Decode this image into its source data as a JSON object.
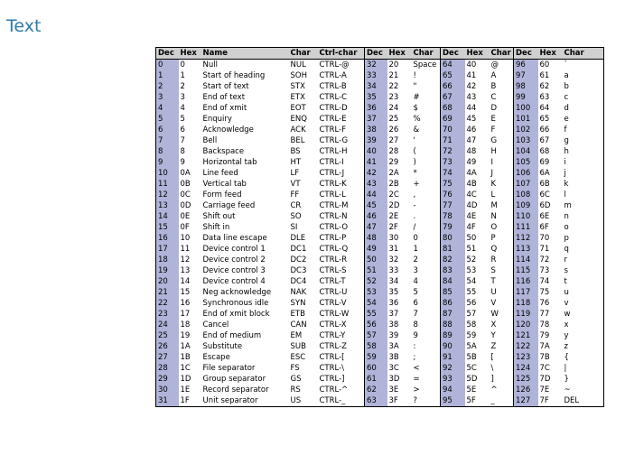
{
  "title": "Text",
  "table": {
    "headers": [
      "Dec",
      "Hex",
      "Name",
      "Char",
      "Ctrl-char",
      "Dec",
      "Hex",
      "Char",
      "Dec",
      "Hex",
      "Char",
      "Dec",
      "Hex",
      "Char"
    ],
    "rows": [
      [
        "0",
        "0",
        "Null",
        "NUL",
        "CTRL-@",
        "32",
        "20",
        "Space",
        "64",
        "40",
        "@",
        "96",
        "60",
        "`"
      ],
      [
        "1",
        "1",
        "Start of heading",
        "SOH",
        "CTRL-A",
        "33",
        "21",
        "!",
        "65",
        "41",
        "A",
        "97",
        "61",
        "a"
      ],
      [
        "2",
        "2",
        "Start of text",
        "STX",
        "CTRL-B",
        "34",
        "22",
        "\"",
        "66",
        "42",
        "B",
        "98",
        "62",
        "b"
      ],
      [
        "3",
        "3",
        "End of text",
        "ETX",
        "CTRL-C",
        "35",
        "23",
        "#",
        "67",
        "43",
        "C",
        "99",
        "63",
        "c"
      ],
      [
        "4",
        "4",
        "End of xmit",
        "EOT",
        "CTRL-D",
        "36",
        "24",
        "$",
        "68",
        "44",
        "D",
        "100",
        "64",
        "d"
      ],
      [
        "5",
        "5",
        "Enquiry",
        "ENQ",
        "CTRL-E",
        "37",
        "25",
        "%",
        "69",
        "45",
        "E",
        "101",
        "65",
        "e"
      ],
      [
        "6",
        "6",
        "Acknowledge",
        "ACK",
        "CTRL-F",
        "38",
        "26",
        "&",
        "70",
        "46",
        "F",
        "102",
        "66",
        "f"
      ],
      [
        "7",
        "7",
        "Bell",
        "BEL",
        "CTRL-G",
        "39",
        "27",
        "'",
        "71",
        "47",
        "G",
        "103",
        "67",
        "g"
      ],
      [
        "8",
        "8",
        "Backspace",
        "BS",
        "CTRL-H",
        "40",
        "28",
        "(",
        "72",
        "48",
        "H",
        "104",
        "68",
        "h"
      ],
      [
        "9",
        "9",
        "Horizontal tab",
        "HT",
        "CTRL-I",
        "41",
        "29",
        ")",
        "73",
        "49",
        "I",
        "105",
        "69",
        "i"
      ],
      [
        "10",
        "0A",
        "Line feed",
        "LF",
        "CTRL-J",
        "42",
        "2A",
        "*",
        "74",
        "4A",
        "J",
        "106",
        "6A",
        "j"
      ],
      [
        "11",
        "0B",
        "Vertical tab",
        "VT",
        "CTRL-K",
        "43",
        "2B",
        "+",
        "75",
        "4B",
        "K",
        "107",
        "6B",
        "k"
      ],
      [
        "12",
        "0C",
        "Form feed",
        "FF",
        "CTRL-L",
        "44",
        "2C",
        ",",
        "76",
        "4C",
        "L",
        "108",
        "6C",
        "l"
      ],
      [
        "13",
        "0D",
        "Carriage feed",
        "CR",
        "CTRL-M",
        "45",
        "2D",
        "-",
        "77",
        "4D",
        "M",
        "109",
        "6D",
        "m"
      ],
      [
        "14",
        "0E",
        "Shift out",
        "SO",
        "CTRL-N",
        "46",
        "2E",
        ".",
        "78",
        "4E",
        "N",
        "110",
        "6E",
        "n"
      ],
      [
        "15",
        "0F",
        "Shift in",
        "SI",
        "CTRL-O",
        "47",
        "2F",
        "/",
        "79",
        "4F",
        "O",
        "111",
        "6F",
        "o"
      ],
      [
        "16",
        "10",
        "Data line escape",
        "DLE",
        "CTRL-P",
        "48",
        "30",
        "0",
        "80",
        "50",
        "P",
        "112",
        "70",
        "p"
      ],
      [
        "17",
        "11",
        "Device control 1",
        "DC1",
        "CTRL-Q",
        "49",
        "31",
        "1",
        "81",
        "51",
        "Q",
        "113",
        "71",
        "q"
      ],
      [
        "18",
        "12",
        "Device control 2",
        "DC2",
        "CTRL-R",
        "50",
        "32",
        "2",
        "82",
        "52",
        "R",
        "114",
        "72",
        "r"
      ],
      [
        "19",
        "13",
        "Device control 3",
        "DC3",
        "CTRL-S",
        "51",
        "33",
        "3",
        "83",
        "53",
        "S",
        "115",
        "73",
        "s"
      ],
      [
        "20",
        "14",
        "Device control 4",
        "DC4",
        "CTRL-T",
        "52",
        "34",
        "4",
        "84",
        "54",
        "T",
        "116",
        "74",
        "t"
      ],
      [
        "21",
        "15",
        "Neg acknowledge",
        "NAK",
        "CTRL-U",
        "53",
        "35",
        "5",
        "85",
        "55",
        "U",
        "117",
        "75",
        "u"
      ],
      [
        "22",
        "16",
        "Synchronous idle",
        "SYN",
        "CTRL-V",
        "54",
        "36",
        "6",
        "86",
        "56",
        "V",
        "118",
        "76",
        "v"
      ],
      [
        "23",
        "17",
        "End of xmit block",
        "ETB",
        "CTRL-W",
        "55",
        "37",
        "7",
        "87",
        "57",
        "W",
        "119",
        "77",
        "w"
      ],
      [
        "24",
        "18",
        "Cancel",
        "CAN",
        "CTRL-X",
        "56",
        "38",
        "8",
        "88",
        "58",
        "X",
        "120",
        "78",
        "x"
      ],
      [
        "25",
        "19",
        "End of medium",
        "EM",
        "CTRL-Y",
        "57",
        "39",
        "9",
        "89",
        "59",
        "Y",
        "121",
        "79",
        "y"
      ],
      [
        "26",
        "1A",
        "Substitute",
        "SUB",
        "CTRL-Z",
        "58",
        "3A",
        ":",
        "90",
        "5A",
        "Z",
        "122",
        "7A",
        "z"
      ],
      [
        "27",
        "1B",
        "Escape",
        "ESC",
        "CTRL-[",
        "59",
        "3B",
        ";",
        "91",
        "5B",
        "[",
        "123",
        "7B",
        "{"
      ],
      [
        "28",
        "1C",
        "File separator",
        "FS",
        "CTRL-\\",
        "60",
        "3C",
        "<",
        "92",
        "5C",
        "\\",
        "124",
        "7C",
        "|"
      ],
      [
        "29",
        "1D",
        "Group separator",
        "GS",
        "CTRL-]",
        "61",
        "3D",
        "=",
        "93",
        "5D",
        "]",
        "125",
        "7D",
        "}"
      ],
      [
        "30",
        "1E",
        "Record separator",
        "RS",
        "CTRL-^",
        "62",
        "3E",
        ">",
        "94",
        "5E",
        "^",
        "126",
        "7E",
        "~"
      ],
      [
        "31",
        "1F",
        "Unit separator",
        "US",
        "CTRL-_",
        "63",
        "3F",
        "?",
        "95",
        "5F",
        "_",
        "127",
        "7F",
        "DEL"
      ]
    ]
  },
  "colors": {
    "title": "#2e7aa8",
    "header_bg": "#d0d0d0",
    "dec_bg": "#b0b4d8"
  }
}
